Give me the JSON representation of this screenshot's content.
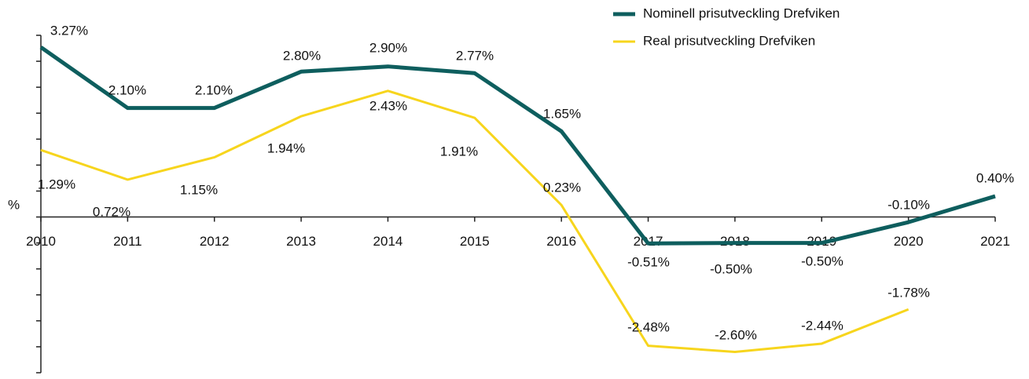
{
  "chart_data": {
    "type": "line",
    "y_label": "%",
    "categories": [
      "2010",
      "2011",
      "2012",
      "2013",
      "2014",
      "2015",
      "2016",
      "2017",
      "2018",
      "2019",
      "2020",
      "2021"
    ],
    "series": [
      {
        "name": "Nominell prisutveckling Drefviken",
        "color": "#0e5e5e",
        "values": [
          3.27,
          2.1,
          2.1,
          2.8,
          2.9,
          2.77,
          1.65,
          -0.51,
          -0.5,
          -0.5,
          -0.1,
          0.4
        ],
        "value_labels": [
          "3.27%",
          "2.10%",
          "2.10%",
          "2.80%",
          "2.90%",
          "2.77%",
          "1.65%",
          "-0.51%",
          "-0.50%",
          "-0.50%",
          "-0.10%",
          "0.40%"
        ]
      },
      {
        "name": "Real prisutveckling Drefviken",
        "color": "#f7d51d",
        "values": [
          1.29,
          0.72,
          1.15,
          1.94,
          2.43,
          1.91,
          0.23,
          -2.48,
          -2.6,
          -2.44,
          -1.78,
          null
        ],
        "value_labels": [
          "1.29%",
          "0.72%",
          "1.15%",
          "1.94%",
          "2.43%",
          "1.91%",
          "0.23%",
          "-2.48%",
          "-2.60%",
          "-2.44%",
          "-1.78%",
          null
        ]
      }
    ],
    "ylim": [
      -3,
      3.5
    ],
    "yticks": [
      -3,
      -2.5,
      -2,
      -1.5,
      -1,
      -0.5,
      0,
      0.5,
      1,
      1.5,
      2,
      2.5,
      3,
      3.5
    ],
    "grid": false,
    "legend": "top"
  }
}
